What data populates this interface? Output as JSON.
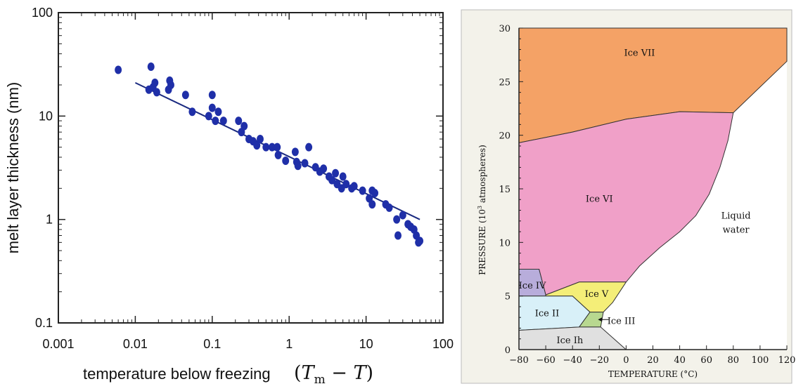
{
  "chart_data": [
    {
      "type": "scatter",
      "xscale": "log",
      "yscale": "log",
      "xlim": [
        0.001,
        100
      ],
      "ylim": [
        0.1,
        100
      ],
      "xticks": [
        "0.001",
        "0.01",
        "0.1",
        "1",
        "10",
        "100"
      ],
      "yticks": [
        "100",
        "10",
        "1",
        "0.1"
      ],
      "ylabel": "melt layer thickness (nm)",
      "xlabel": "temperature below freezing",
      "xlabel_math": "(T_m − T)",
      "xlabel_math_parts": {
        "open": "(",
        "T": "T",
        "sub": "m",
        "minus": " − ",
        "T2": "T",
        "close": ")"
      },
      "points": [
        [
          0.006,
          28
        ],
        [
          0.015,
          18
        ],
        [
          0.016,
          30
        ],
        [
          0.017,
          19
        ],
        [
          0.018,
          21
        ],
        [
          0.019,
          17
        ],
        [
          0.027,
          18
        ],
        [
          0.028,
          22
        ],
        [
          0.029,
          20
        ],
        [
          0.045,
          16
        ],
        [
          0.055,
          11
        ],
        [
          0.09,
          10
        ],
        [
          0.1,
          16
        ],
        [
          0.1,
          12
        ],
        [
          0.11,
          9
        ],
        [
          0.12,
          11
        ],
        [
          0.14,
          9
        ],
        [
          0.22,
          9
        ],
        [
          0.24,
          7
        ],
        [
          0.26,
          8
        ],
        [
          0.3,
          6
        ],
        [
          0.34,
          5.7
        ],
        [
          0.38,
          5.2
        ],
        [
          0.42,
          6
        ],
        [
          0.5,
          5
        ],
        [
          0.6,
          5
        ],
        [
          0.7,
          5
        ],
        [
          0.72,
          4.2
        ],
        [
          0.9,
          3.7
        ],
        [
          1.2,
          4.5
        ],
        [
          1.25,
          3.6
        ],
        [
          1.3,
          3.3
        ],
        [
          1.6,
          3.5
        ],
        [
          1.8,
          5
        ],
        [
          2.2,
          3.2
        ],
        [
          2.5,
          2.9
        ],
        [
          2.8,
          3.1
        ],
        [
          3.3,
          2.6
        ],
        [
          3.6,
          2.4
        ],
        [
          4.0,
          2.8
        ],
        [
          4.2,
          2.2
        ],
        [
          4.8,
          2.0
        ],
        [
          5.0,
          2.6
        ],
        [
          5.5,
          2.2
        ],
        [
          6.5,
          2.0
        ],
        [
          7.0,
          2.1
        ],
        [
          9.0,
          1.9
        ],
        [
          11,
          1.6
        ],
        [
          12,
          1.9
        ],
        [
          12,
          1.4
        ],
        [
          13,
          1.8
        ],
        [
          18,
          1.4
        ],
        [
          20,
          1.3
        ],
        [
          25,
          1.0
        ],
        [
          26,
          0.7
        ],
        [
          30,
          1.1
        ],
        [
          35,
          0.9
        ],
        [
          38,
          0.85
        ],
        [
          42,
          0.8
        ],
        [
          45,
          0.7
        ],
        [
          48,
          0.6
        ],
        [
          50,
          0.62
        ]
      ],
      "fit_line": [
        [
          0.01,
          21
        ],
        [
          50,
          1.0
        ]
      ],
      "marker_color": "#1f2fa8",
      "line_color": "#1a2a80"
    },
    {
      "type": "phase-diagram",
      "xlabel": "TEMPERATURE (°C)",
      "ylabel_parts": {
        "pre": "PRESSURE (10",
        "sup": "3",
        "post": " atmospheres)"
      },
      "xlim": [
        -80,
        120
      ],
      "ylim": [
        0,
        30
      ],
      "xticks": [
        "−80",
        "−60",
        "−40",
        "−20",
        "0",
        "20",
        "40",
        "60",
        "80",
        "100",
        "120"
      ],
      "yticks": [
        "0",
        "5",
        "10",
        "15",
        "20",
        "25",
        "30"
      ],
      "regions": [
        {
          "name": "Ice VII",
          "color": "#f4a266"
        },
        {
          "name": "Ice VI",
          "color": "#f0a0c8"
        },
        {
          "name": "Ice IV",
          "color": "#b8addb"
        },
        {
          "name": "Ice V",
          "color": "#f4ee78"
        },
        {
          "name": "Ice II",
          "color": "#d8f0f8"
        },
        {
          "name": "Ice III",
          "color": "#b8d890"
        },
        {
          "name": "Ice Ih",
          "color": "#e0e0e0"
        }
      ],
      "liquid_label": [
        "Liquid",
        "water"
      ],
      "background_color": "#f3f2ea",
      "plot_background": "#ffffff"
    }
  ]
}
